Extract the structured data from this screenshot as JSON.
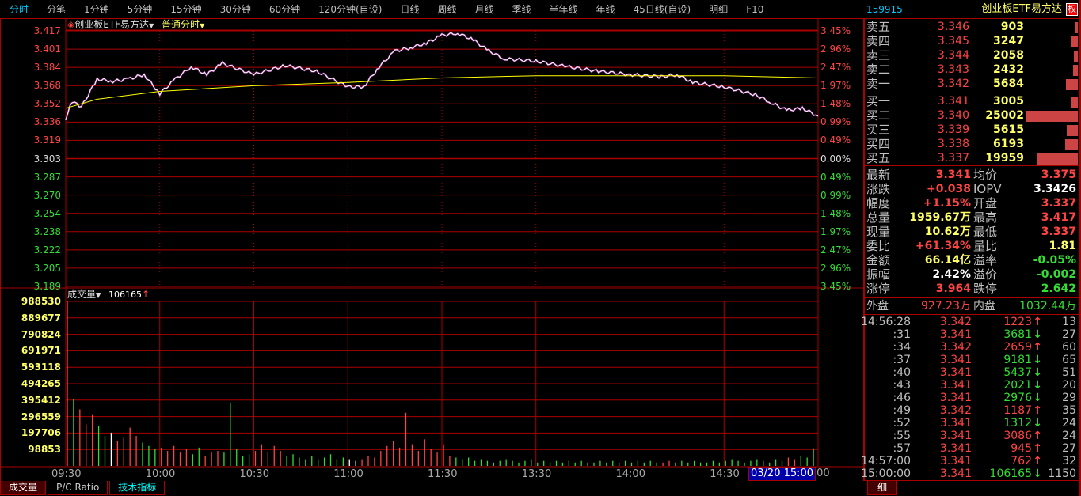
{
  "toolbar": {
    "items": [
      "分时",
      "分笔",
      "1分钟",
      "5分钟",
      "15分钟",
      "30分钟",
      "60分钟",
      "120分钟(自设)",
      "日线",
      "周线",
      "月线",
      "季线",
      "半年线",
      "年线",
      "45日线(自设)",
      "明细",
      "F10"
    ],
    "active": 0
  },
  "chart": {
    "symbol_name": "创业板ETF易方达",
    "mode": "普通分时",
    "volume_label": "成交量",
    "volume_last": "106165",
    "price_ticks": [
      "3.417",
      "3.401",
      "3.384",
      "3.368",
      "3.352",
      "3.336",
      "3.319",
      "3.303",
      "3.287",
      "3.270",
      "3.254",
      "3.238",
      "3.222",
      "3.205",
      "3.189"
    ],
    "pct_ticks": [
      "3.45%",
      "2.96%",
      "2.47%",
      "1.97%",
      "1.48%",
      "0.99%",
      "0.49%",
      "0.00%",
      "0.49%",
      "0.99%",
      "1.48%",
      "1.97%",
      "2.47%",
      "2.96%",
      "3.45%"
    ],
    "volume_ticks": [
      "988530",
      "889677",
      "790824",
      "691971",
      "593118",
      "494265",
      "395412",
      "296559",
      "197706",
      "98853"
    ],
    "time_ticks": [
      "09:30",
      "10:00",
      "10:30",
      "11:00",
      "11:30",
      "13:30",
      "14:00",
      "14:30"
    ],
    "cursor_label": "03/20 15:00",
    "cursor_suffix": "00"
  },
  "chart_data": {
    "type": "line",
    "prev_close": 3.303,
    "ylim": [
      3.189,
      3.417
    ],
    "price": [
      [
        "09:30",
        3.3386
      ],
      [
        "09:32",
        3.354
      ],
      [
        "09:35",
        3.349
      ],
      [
        "09:40",
        3.374
      ],
      [
        "09:45",
        3.372
      ],
      [
        "09:50",
        3.374
      ],
      [
        "09:55",
        3.378
      ],
      [
        "10:00",
        3.361
      ],
      [
        "10:05",
        3.374
      ],
      [
        "10:10",
        3.385
      ],
      [
        "10:15",
        3.378
      ],
      [
        "10:20",
        3.388
      ],
      [
        "10:30",
        3.378
      ],
      [
        "10:40",
        3.386
      ],
      [
        "10:50",
        3.381
      ],
      [
        "11:00",
        3.367
      ],
      [
        "11:05",
        3.367
      ],
      [
        "11:10",
        3.385
      ],
      [
        "11:15",
        3.399
      ],
      [
        "11:20",
        3.402
      ],
      [
        "11:25",
        3.406
      ],
      [
        "11:30",
        3.413
      ],
      [
        "13:05",
        3.415
      ],
      [
        "13:10",
        3.409
      ],
      [
        "13:15",
        3.399
      ],
      [
        "13:20",
        3.392
      ],
      [
        "13:30",
        3.39
      ],
      [
        "13:40",
        3.385
      ],
      [
        "13:50",
        3.381
      ],
      [
        "14:00",
        3.378
      ],
      [
        "14:10",
        3.376
      ],
      [
        "14:15",
        3.378
      ],
      [
        "14:20",
        3.371
      ],
      [
        "14:30",
        3.367
      ],
      [
        "14:40",
        3.36
      ],
      [
        "14:45",
        3.353
      ],
      [
        "14:50",
        3.346
      ],
      [
        "14:55",
        3.348
      ],
      [
        "15:00",
        3.341
      ]
    ],
    "average": [
      [
        "09:30",
        3.348
      ],
      [
        "09:40",
        3.356
      ],
      [
        "10:00",
        3.363
      ],
      [
        "10:30",
        3.368
      ],
      [
        "11:00",
        3.371
      ],
      [
        "11:30",
        3.375
      ],
      [
        "13:30",
        3.377
      ],
      [
        "14:00",
        3.377
      ],
      [
        "14:30",
        3.377
      ],
      [
        "15:00",
        3.375
      ]
    ],
    "volume_thousands": [
      990,
      400,
      340,
      250,
      310,
      240,
      180,
      200,
      150,
      170,
      230,
      180,
      140,
      120,
      100,
      110,
      90,
      120,
      80,
      100,
      70,
      110,
      60,
      80,
      90,
      80,
      380,
      100,
      60,
      70,
      90,
      130,
      80,
      120,
      90,
      60,
      70,
      50,
      40,
      60,
      40,
      50,
      70,
      40,
      50,
      40,
      30,
      40,
      60,
      50,
      90,
      120,
      150,
      110,
      320,
      130,
      90,
      160,
      100,
      80,
      130,
      60,
      50,
      40,
      50,
      30,
      40,
      30,
      20,
      30,
      40,
      30,
      20,
      30,
      40,
      20,
      30,
      20,
      30,
      20,
      30,
      20,
      30,
      20,
      20,
      30,
      20,
      30,
      20,
      30,
      20,
      30,
      20,
      30,
      20,
      20,
      30,
      20,
      30,
      20,
      30,
      20,
      20,
      30,
      20,
      30,
      40,
      30,
      20,
      30,
      40,
      30,
      20,
      40,
      30,
      50,
      40,
      60,
      50,
      106
    ]
  },
  "tabs": [
    "成交量",
    "P/C Ratio",
    "技术指标"
  ],
  "quote": {
    "code": "159915",
    "name": "创业板ETF易方达",
    "badge": "权",
    "asks": [
      {
        "label": "卖五",
        "price": "3.346",
        "vol": "903",
        "bar": 0.04
      },
      {
        "label": "卖四",
        "price": "3.345",
        "vol": "3247",
        "bar": 0.13
      },
      {
        "label": "卖三",
        "price": "3.344",
        "vol": "2058",
        "bar": 0.08
      },
      {
        "label": "卖二",
        "price": "3.343",
        "vol": "2432",
        "bar": 0.1
      },
      {
        "label": "卖一",
        "price": "3.342",
        "vol": "5684",
        "bar": 0.23
      }
    ],
    "bids": [
      {
        "label": "买一",
        "price": "3.341",
        "vol": "3005",
        "bar": 0.12
      },
      {
        "label": "买二",
        "price": "3.340",
        "vol": "25002",
        "bar": 1
      },
      {
        "label": "买三",
        "price": "3.339",
        "vol": "5615",
        "bar": 0.22
      },
      {
        "label": "买四",
        "price": "3.338",
        "vol": "6193",
        "bar": 0.25
      },
      {
        "label": "买五",
        "price": "3.337",
        "vol": "19959",
        "bar": 0.8
      }
    ],
    "stats": [
      [
        "最新",
        "3.341",
        "red",
        "均价",
        "3.375",
        "red"
      ],
      [
        "涨跌",
        "+0.038",
        "red",
        "IOPV",
        "3.3426",
        "wht"
      ],
      [
        "幅度",
        "+1.15%",
        "red",
        "开盘",
        "3.337",
        "red"
      ],
      [
        "总量",
        "1959.67万",
        "yel",
        "最高",
        "3.417",
        "red"
      ],
      [
        "现量",
        "10.62万",
        "yel",
        "最低",
        "3.337",
        "red"
      ],
      [
        "委比",
        "+61.34%",
        "red",
        "量比",
        "1.81",
        "yel"
      ],
      [
        "金额",
        "66.14亿",
        "yel",
        "溢率",
        "-0.05%",
        "grn"
      ],
      [
        "振幅",
        "2.42%",
        "wht",
        "溢价",
        "-0.002",
        "grn"
      ],
      [
        "涨停",
        "3.964",
        "red",
        "跌停",
        "2.642",
        "grn"
      ]
    ],
    "outer_label": "外盘",
    "outer": "927.23万",
    "inner_label": "内盘",
    "inner": "1032.44万",
    "ticks": [
      [
        "14:56:28",
        "3.342",
        "1223",
        "up",
        "13"
      ],
      [
        ":31",
        "3.341",
        "3681",
        "down",
        "27"
      ],
      [
        ":34",
        "3.342",
        "2659",
        "up",
        "60"
      ],
      [
        ":37",
        "3.341",
        "9181",
        "down",
        "65"
      ],
      [
        ":40",
        "3.341",
        "5437",
        "down",
        "51"
      ],
      [
        ":43",
        "3.341",
        "2021",
        "down",
        "20"
      ],
      [
        ":46",
        "3.341",
        "2976",
        "down",
        "29"
      ],
      [
        ":49",
        "3.342",
        "1187",
        "up",
        "35"
      ],
      [
        ":52",
        "3.341",
        "1312",
        "down",
        "24"
      ],
      [
        ":55",
        "3.341",
        "3086",
        "up",
        "24"
      ],
      [
        ":57",
        "3.341",
        "945",
        "up",
        "27"
      ],
      [
        "14:57:00",
        "3.341",
        "762",
        "up",
        "32"
      ],
      [
        "15:00:00",
        "3.341",
        "106165",
        "down",
        "1150"
      ]
    ],
    "detail_tab": "细"
  },
  "colors": {
    "grid": "#aa0000",
    "price_line": "#ffffff",
    "avg_line": "#ffff00",
    "up": "#ff4444",
    "down": "#33dd33",
    "cursor_bg": "#0000aa"
  }
}
